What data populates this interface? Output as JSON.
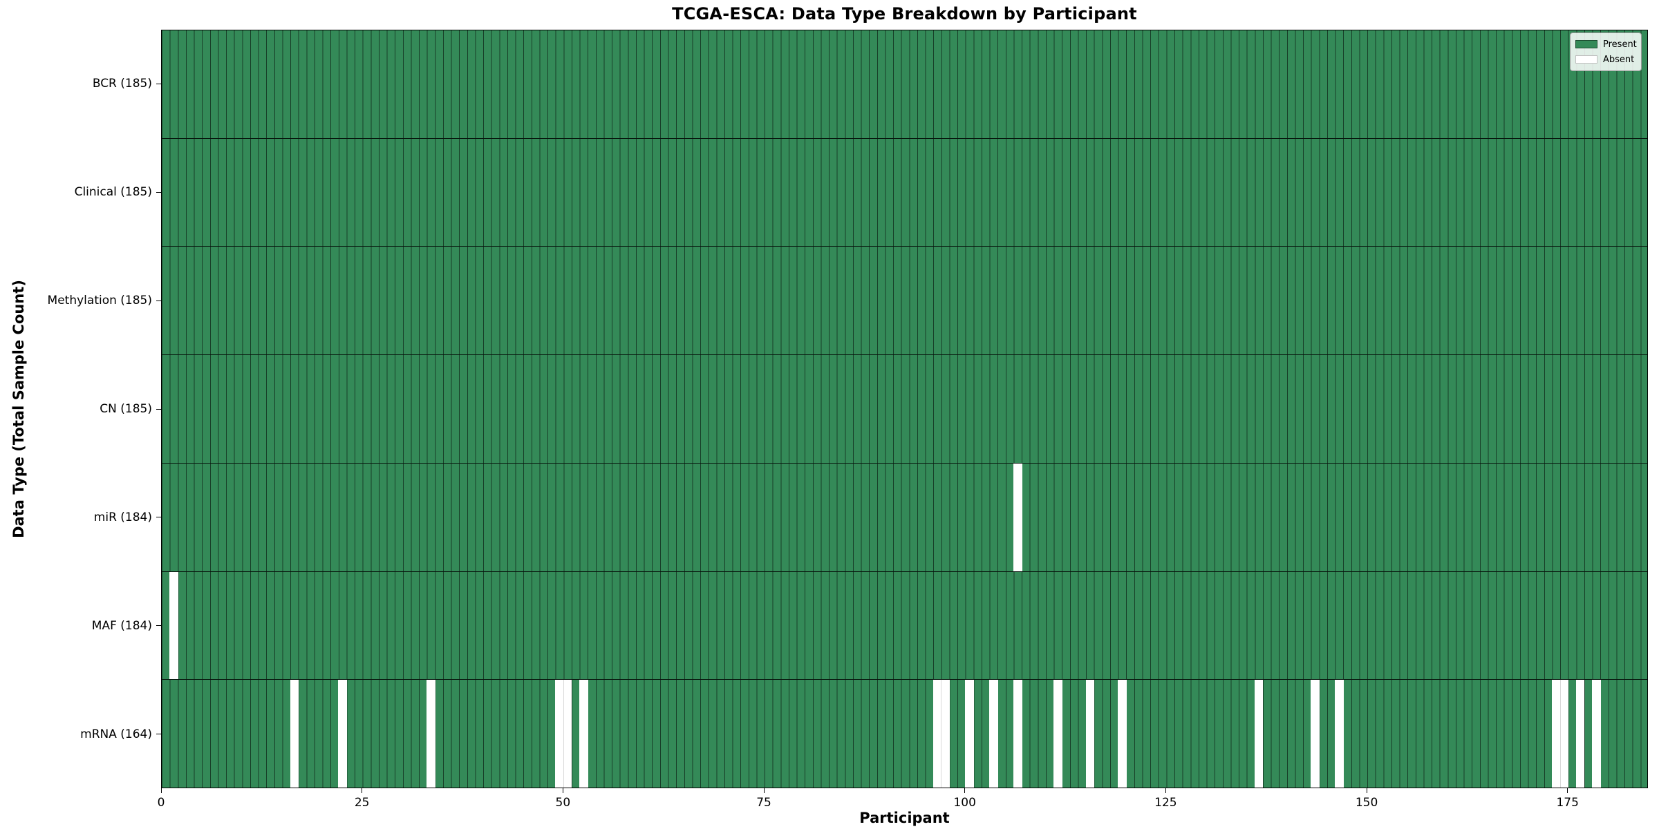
{
  "chart_data": {
    "type": "heatmap",
    "title": "TCGA-ESCA: Data Type Breakdown by Participant",
    "xlabel": "Participant",
    "ylabel": "Data Type (Total Sample Count)",
    "n_participants": 185,
    "x_axis": {
      "range": [
        0,
        185
      ],
      "ticks": [
        0,
        25,
        50,
        75,
        100,
        125,
        150,
        175
      ]
    },
    "cell_states": {
      "present": 1,
      "absent": 0
    },
    "rows": [
      {
        "name": "BCR",
        "label": "BCR (185)",
        "total": 185,
        "absent_participants": []
      },
      {
        "name": "Clinical",
        "label": "Clinical (185)",
        "total": 185,
        "absent_participants": []
      },
      {
        "name": "Methylation",
        "label": "Methylation (185)",
        "total": 185,
        "absent_participants": []
      },
      {
        "name": "CN",
        "label": "CN (185)",
        "total": 185,
        "absent_participants": []
      },
      {
        "name": "miR",
        "label": "miR (184)",
        "total": 184,
        "absent_participants": [
          106
        ]
      },
      {
        "name": "MAF",
        "label": "MAF (184)",
        "total": 184,
        "absent_participants": [
          1
        ]
      },
      {
        "name": "mRNA",
        "label": "mRNA (164)",
        "total": 164,
        "absent_participants": [
          16,
          22,
          33,
          49,
          50,
          52,
          96,
          97,
          100,
          103,
          106,
          111,
          115,
          119,
          136,
          143,
          146,
          173,
          174,
          176,
          178
        ]
      }
    ],
    "legend": [
      {
        "label": "Present",
        "color": "#348a58"
      },
      {
        "label": "Absent",
        "color": "#ffffff"
      }
    ],
    "colors": {
      "present": "#348a58",
      "absent": "#ffffff",
      "cell_edge": "#1d4f33",
      "row_separator": "#000000",
      "text": "#000000"
    },
    "legend_position": "upper right",
    "grid": "per-cell vertical edges"
  }
}
